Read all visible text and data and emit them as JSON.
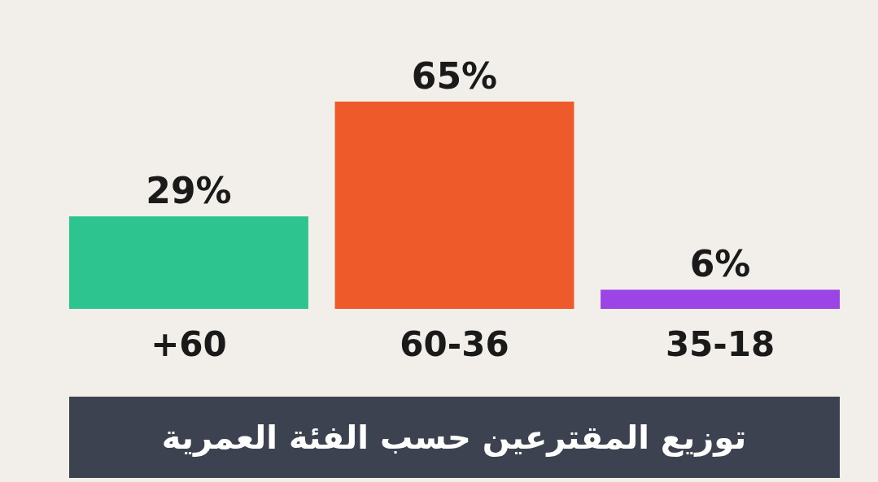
{
  "chart_data": {
    "type": "bar",
    "title": "توزيع المقترعين حسب الفئة العمرية",
    "categories": [
      "+60",
      "60-36",
      "35-18"
    ],
    "values": [
      29,
      65,
      6
    ],
    "colors": [
      "#2ec48f",
      "#ee5a2a",
      "#9b45e6"
    ],
    "value_labels": [
      "29%",
      "65%",
      "6%"
    ]
  }
}
